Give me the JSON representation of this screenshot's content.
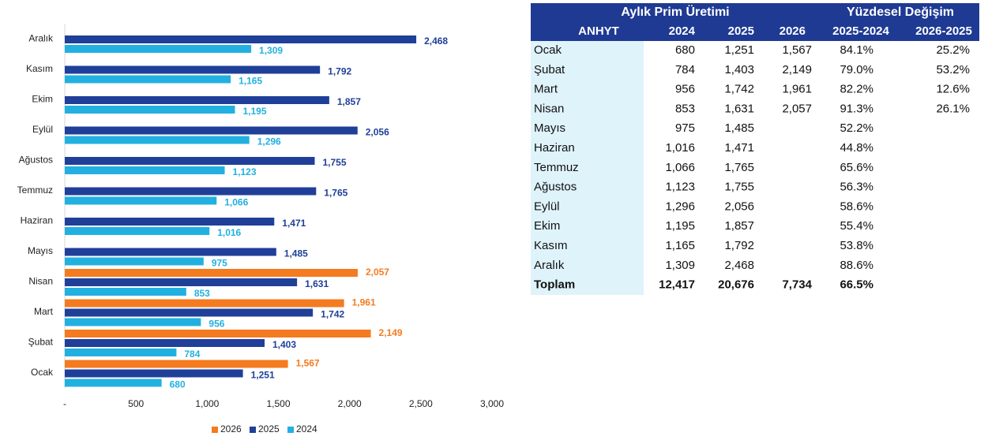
{
  "chart_data": {
    "type": "bar",
    "orientation": "horizontal",
    "categories": [
      "Ocak",
      "Şubat",
      "Mart",
      "Nisan",
      "Mayıs",
      "Haziran",
      "Temmuz",
      "Ağustos",
      "Eylül",
      "Ekim",
      "Kasım",
      "Aralık"
    ],
    "series": [
      {
        "name": "2026",
        "color": "#f47b20",
        "values": [
          1567,
          2149,
          1961,
          2057,
          null,
          null,
          null,
          null,
          null,
          null,
          null,
          null
        ],
        "value_labels": [
          "1,567",
          "2,149",
          "1,961",
          "2,057",
          null,
          null,
          null,
          null,
          null,
          null,
          null,
          null
        ]
      },
      {
        "name": "2025",
        "color": "#1f3f99",
        "values": [
          1251,
          1403,
          1742,
          1631,
          1485,
          1471,
          1765,
          1755,
          2056,
          1857,
          1792,
          2468
        ],
        "value_labels": [
          "1,251",
          "1,403",
          "1,742",
          "1,631",
          "1,485",
          "1,471",
          "1,765",
          "1,755",
          "2,056",
          "1,857",
          "1,792",
          "2,468"
        ]
      },
      {
        "name": "2024",
        "color": "#22b0e0",
        "values": [
          680,
          784,
          956,
          853,
          975,
          1016,
          1066,
          1123,
          1296,
          1195,
          1165,
          1309
        ],
        "value_labels": [
          "680",
          "784",
          "956",
          "853",
          "975",
          "1,016",
          "1,066",
          "1,123",
          "1,296",
          "1,195",
          "1,165",
          "1,309"
        ]
      }
    ],
    "xlim": [
      0,
      3000
    ],
    "xticks": [
      {
        "value": 0,
        "label": "-"
      },
      500,
      {
        "value": 1000,
        "label": "1,000"
      },
      {
        "value": 1500,
        "label": "1,500"
      },
      {
        "value": 2000,
        "label": "2,000"
      },
      {
        "value": 2500,
        "label": "2,500"
      },
      {
        "value": 3000,
        "label": "3,000"
      }
    ],
    "legend": "bottom"
  },
  "table": {
    "group_headers": [
      "Aylık Prim Üretimi",
      "Yüzdesel Değişim"
    ],
    "columns": [
      "ANHYT",
      "2024",
      "2025",
      "2026",
      "2025-2024",
      "2026-2025"
    ],
    "rows": [
      [
        "Ocak",
        "680",
        "1,251",
        "1,567",
        "84.1%",
        "25.2%"
      ],
      [
        "Şubat",
        "784",
        "1,403",
        "2,149",
        "79.0%",
        "53.2%"
      ],
      [
        "Mart",
        "956",
        "1,742",
        "1,961",
        "82.2%",
        "12.6%"
      ],
      [
        "Nisan",
        "853",
        "1,631",
        "2,057",
        "91.3%",
        "26.1%"
      ],
      [
        "Mayıs",
        "975",
        "1,485",
        null,
        "52.2%",
        null
      ],
      [
        "Haziran",
        "1,016",
        "1,471",
        null,
        "44.8%",
        null
      ],
      [
        "Temmuz",
        "1,066",
        "1,765",
        null,
        "65.6%",
        null
      ],
      [
        "Ağustos",
        "1,123",
        "1,755",
        null,
        "56.3%",
        null
      ],
      [
        "Eylül",
        "1,296",
        "2,056",
        null,
        "58.6%",
        null
      ],
      [
        "Ekim",
        "1,195",
        "1,857",
        null,
        "55.4%",
        null
      ],
      [
        "Kasım",
        "1,165",
        "1,792",
        null,
        "53.8%",
        null
      ],
      [
        "Aralık",
        "1,309",
        "2,468",
        null,
        "88.6%",
        null
      ]
    ],
    "total": [
      "Toplam",
      "12,417",
      "20,676",
      "7,734",
      "66.5%",
      null
    ]
  }
}
